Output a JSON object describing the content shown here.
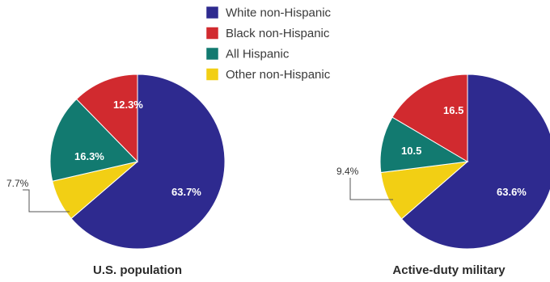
{
  "legend": [
    {
      "label": "White non-Hispanic",
      "color": "#2e2a8f"
    },
    {
      "label": "Black non-Hispanic",
      "color": "#d12a2f"
    },
    {
      "label": "All Hispanic",
      "color": "#127a70"
    },
    {
      "label": "Other non-Hispanic",
      "color": "#f2cf14"
    }
  ],
  "chart_data": [
    {
      "type": "pie",
      "title": "U.S. population",
      "labels": [
        "White non-Hispanic",
        "Black non-Hispanic",
        "All Hispanic",
        "Other non-Hispanic"
      ],
      "values": [
        63.7,
        12.3,
        16.3,
        7.7
      ],
      "value_labels": [
        "63.7%",
        "12.3%",
        "16.3%",
        "7.7%"
      ],
      "colors": [
        "#2e2a8f",
        "#d12a2f",
        "#127a70",
        "#f2cf14"
      ]
    },
    {
      "type": "pie",
      "title": "Active-duty military",
      "labels": [
        "White non-Hispanic",
        "Black non-Hispanic",
        "All Hispanic",
        "Other non-Hispanic"
      ],
      "values": [
        63.6,
        16.5,
        10.5,
        9.4
      ],
      "value_labels": [
        "63.6%",
        "16.5",
        "10.5",
        "9.4%"
      ],
      "colors": [
        "#2e2a8f",
        "#d12a2f",
        "#127a70",
        "#f2cf14"
      ]
    }
  ]
}
